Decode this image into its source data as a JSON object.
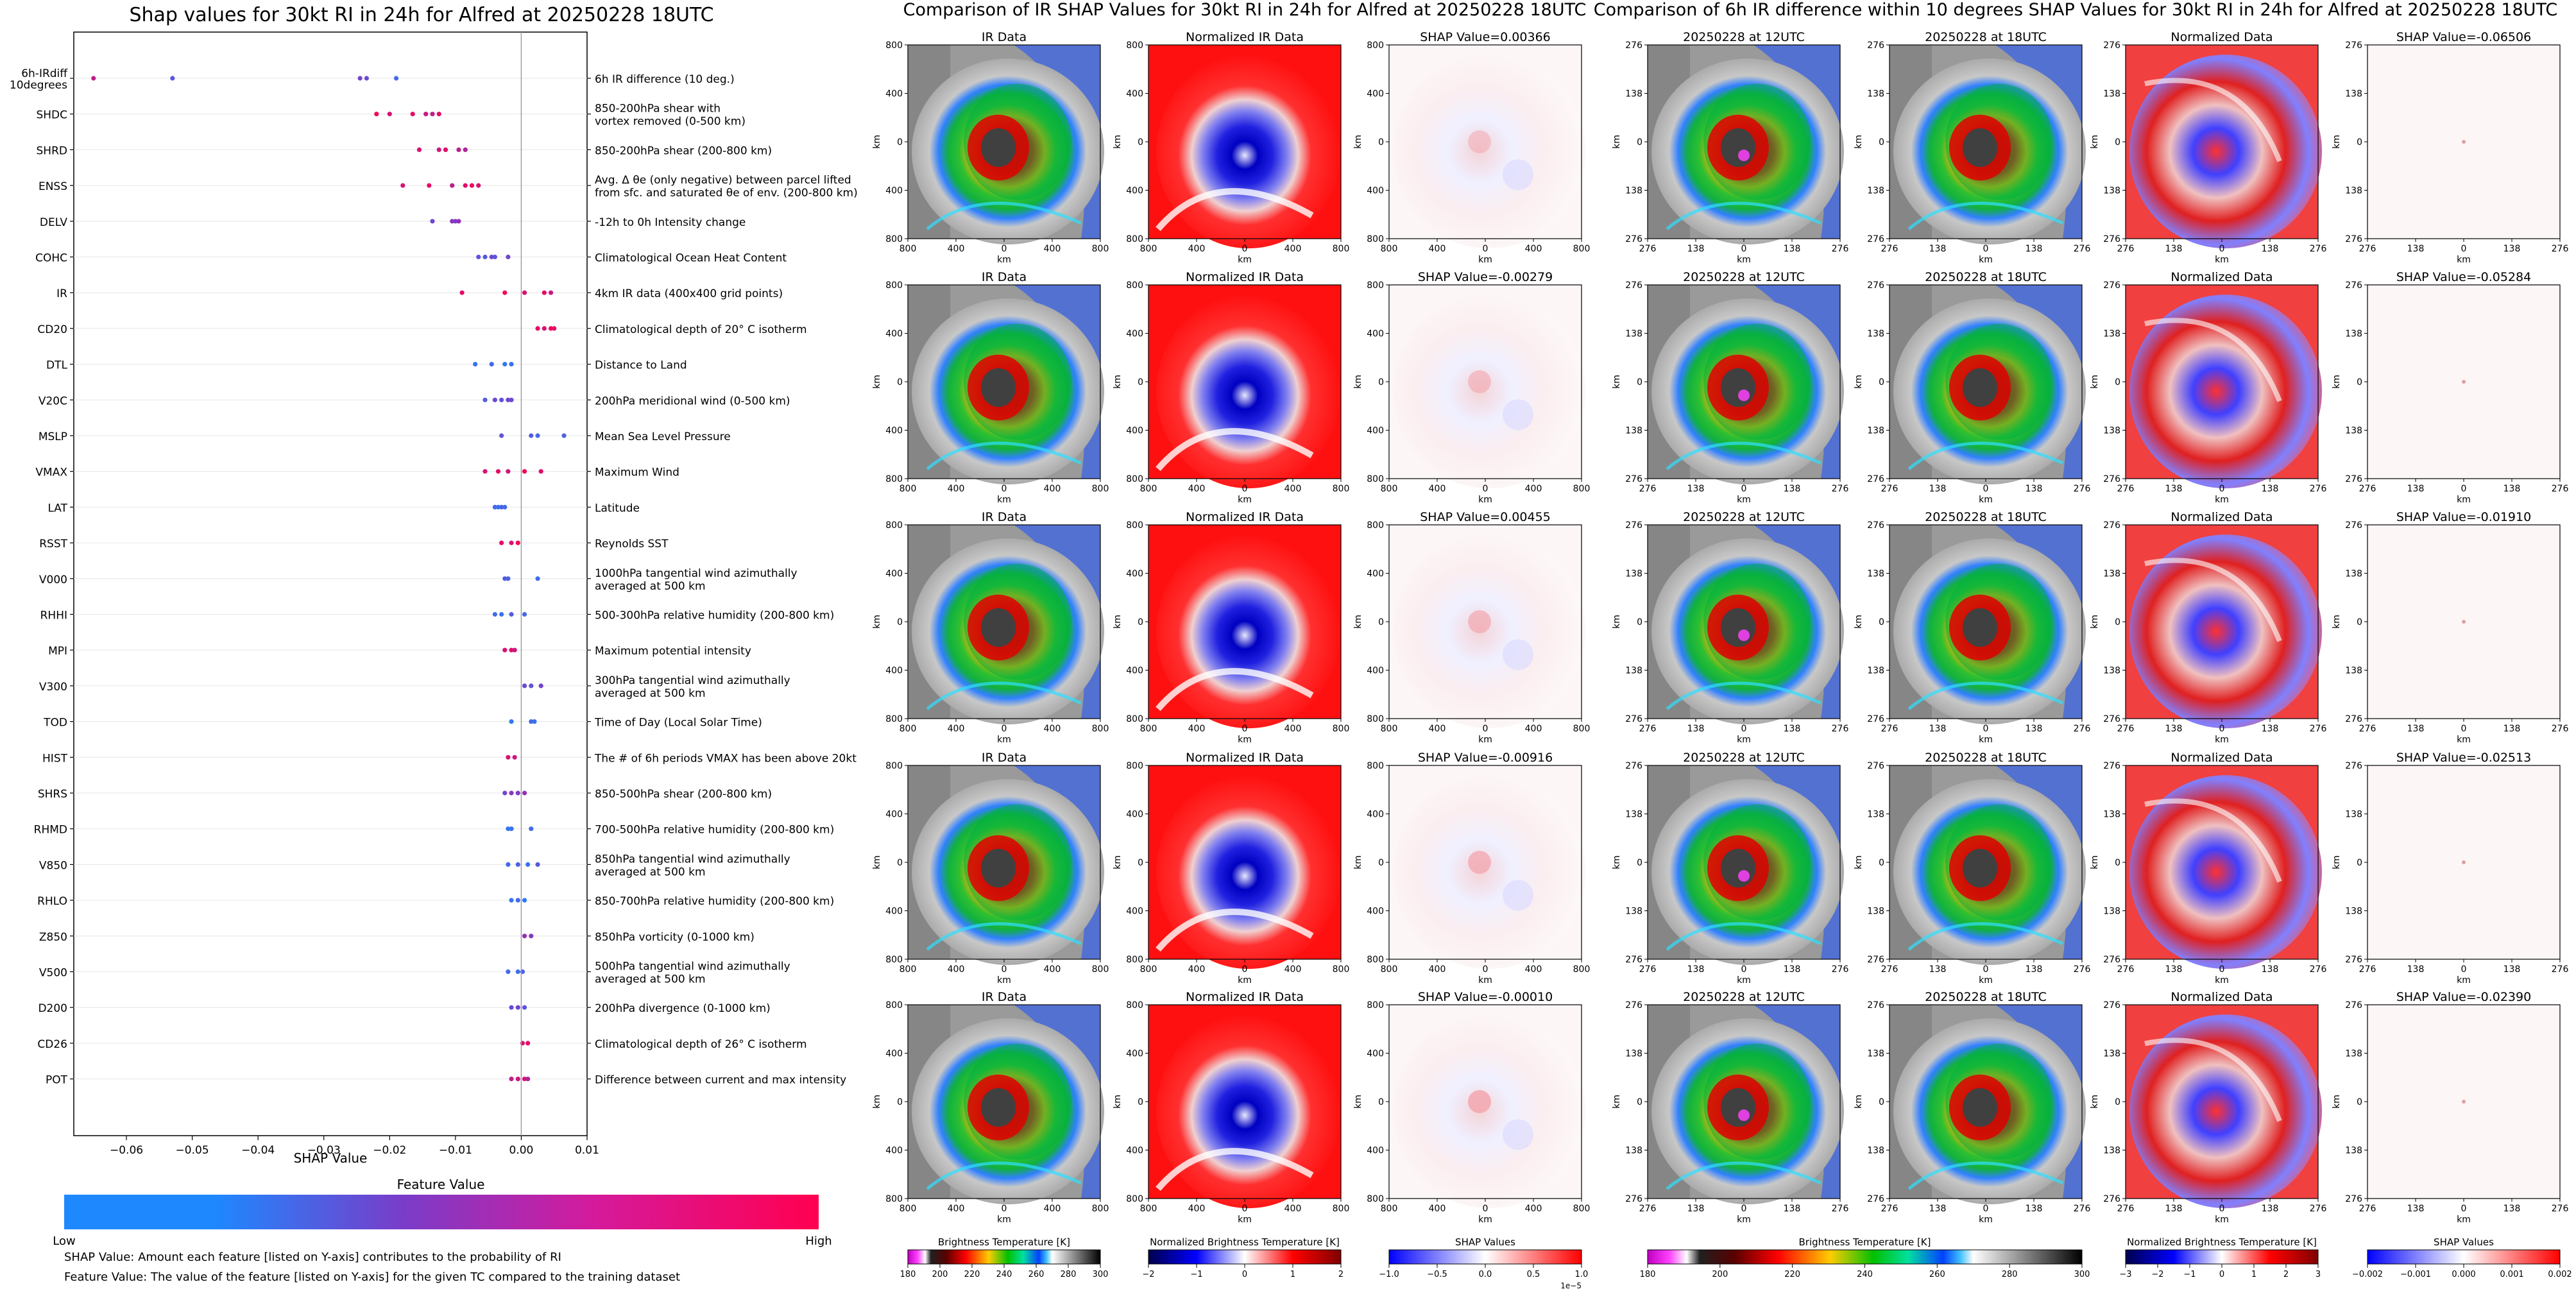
{
  "left_panel": {
    "title": "Shap values for 30kt RI in 24h for Alfred at 20250228 18UTC",
    "xlabel": "SHAP Value",
    "xticks": [
      "−0.06",
      "−0.05",
      "−0.04",
      "−0.03",
      "−0.02",
      "−0.01",
      "0.00",
      "0.01"
    ],
    "colorbar_title": "Feature Value",
    "colorbar_low": "Low",
    "colorbar_high": "High",
    "note1": "SHAP Value: Amount each feature [listed on Y-axis] contributes to the probability of RI",
    "note2": "Feature Value: The value of the feature [listed on Y-axis] for the given TC compared to the training dataset"
  },
  "middle_panel": {
    "title": "Comparison of IR SHAP Values for 30kt RI in 24h for Alfred at 20250228 18UTC",
    "col_titles": [
      "IR Data",
      "Normalized IR Data"
    ],
    "shap_titles": [
      "SHAP Value=0.00366",
      "SHAP Value=-0.00279",
      "SHAP Value=0.00455",
      "SHAP Value=-0.00916",
      "SHAP Value=-0.00010"
    ],
    "ticks": [
      "800",
      "400",
      "0",
      "400",
      "800"
    ],
    "axis_label": "km",
    "colorbars": [
      {
        "title": "Brightness Temperature [K]",
        "ticks": [
          "180",
          "200",
          "220",
          "240",
          "260",
          "280",
          "300"
        ]
      },
      {
        "title": "Normalized Brightness Temperature [K]",
        "ticks": [
          "−2",
          "−1",
          "0",
          "1",
          "2"
        ]
      },
      {
        "title": "SHAP Values",
        "ticks": [
          "−1.0",
          "−0.5",
          "0.0",
          "0.5",
          "1.0"
        ],
        "offset": "1e−5"
      }
    ]
  },
  "right_panel": {
    "title": "Comparison of 6h IR difference within 10 degrees SHAP Values for 30kt RI in 24h for Alfred at 20250228 18UTC",
    "col_titles": [
      "20250228 at 12UTC",
      "20250228 at 18UTC",
      "Normalized Data"
    ],
    "shap_titles": [
      "SHAP Value=-0.06506",
      "SHAP Value=-0.05284",
      "SHAP Value=-0.01910",
      "SHAP Value=-0.02513",
      "SHAP Value=-0.02390"
    ],
    "ticks": [
      "276",
      "138",
      "0",
      "138",
      "276"
    ],
    "axis_label": "km",
    "colorbars": [
      {
        "title": "Brightness Temperature [K]",
        "ticks": [
          "180",
          "200",
          "220",
          "240",
          "260",
          "280",
          "300"
        ]
      },
      {
        "title": "Normalized Brightness Temperature [K]",
        "ticks": [
          "−3",
          "−2",
          "−1",
          "0",
          "1",
          "2",
          "3"
        ]
      },
      {
        "title": "SHAP Values",
        "ticks": [
          "−0.002",
          "−0.001",
          "0.000",
          "0.001",
          "0.002"
        ]
      }
    ]
  },
  "chart_data": {
    "type": "scatter",
    "title": "Shap values for 30kt RI in 24h for Alfred at 20250228 18UTC",
    "xlabel": "SHAP Value",
    "xlim": [
      -0.068,
      0.01
    ],
    "legend": "Feature Value colorbar, Low (blue) to High (pink)",
    "features": [
      {
        "code": "6h-IRdiff\n10degrees",
        "desc": "6h IR difference (10 deg.)",
        "points": [
          [
            -0.065,
            0.75
          ],
          [
            -0.053,
            0.35
          ],
          [
            -0.0245,
            0.45
          ],
          [
            -0.0235,
            0.4
          ],
          [
            -0.019,
            0.2
          ]
        ]
      },
      {
        "code": "SHDC",
        "desc": "850-200hPa shear with\nvortex removed (0-500 km)",
        "points": [
          [
            -0.022,
            0.95
          ],
          [
            -0.02,
            0.85
          ],
          [
            -0.0165,
            0.9
          ],
          [
            -0.0145,
            0.8
          ],
          [
            -0.0135,
            0.75
          ],
          [
            -0.0125,
            0.9
          ]
        ]
      },
      {
        "code": "SHRD",
        "desc": "850-200hPa shear (200-800 km)",
        "points": [
          [
            -0.0155,
            0.85
          ],
          [
            -0.0125,
            0.8
          ],
          [
            -0.0115,
            0.9
          ],
          [
            -0.0095,
            0.75
          ],
          [
            -0.0085,
            0.7
          ]
        ]
      },
      {
        "code": "ENSS",
        "desc": "Avg. Δ θe (only negative) between parcel lifted\nfrom sfc. and saturated θe of env. (200-800 km)",
        "points": [
          [
            -0.018,
            0.85
          ],
          [
            -0.014,
            0.9
          ],
          [
            -0.0105,
            0.75
          ],
          [
            -0.0085,
            0.9
          ],
          [
            -0.0075,
            0.95
          ],
          [
            -0.0065,
            0.85
          ]
        ]
      },
      {
        "code": "DELV",
        "desc": "-12h to 0h Intensity change",
        "points": [
          [
            -0.0135,
            0.45
          ],
          [
            -0.0105,
            0.55
          ],
          [
            -0.01,
            0.5
          ],
          [
            -0.0095,
            0.6
          ]
        ]
      },
      {
        "code": "COHC",
        "desc": "Climatological Ocean Heat Content",
        "points": [
          [
            -0.0065,
            0.35
          ],
          [
            -0.0055,
            0.3
          ],
          [
            -0.0045,
            0.4
          ],
          [
            -0.004,
            0.35
          ],
          [
            -0.002,
            0.45
          ]
        ]
      },
      {
        "code": "IR",
        "desc": "4km IR data (400x400 grid points)",
        "points": [
          [
            -0.009,
            0.9
          ],
          [
            -0.0025,
            0.95
          ],
          [
            0.0005,
            0.85
          ],
          [
            0.0035,
            0.9
          ],
          [
            0.0045,
            0.8
          ]
        ]
      },
      {
        "code": "CD20",
        "desc": "Climatological depth of 20° C isotherm",
        "points": [
          [
            0.0025,
            0.9
          ],
          [
            0.0035,
            0.85
          ],
          [
            0.0045,
            0.95
          ],
          [
            0.005,
            0.9
          ]
        ]
      },
      {
        "code": "DTL",
        "desc": "Distance to Land",
        "points": [
          [
            -0.007,
            0.15
          ],
          [
            -0.0045,
            0.2
          ],
          [
            -0.0025,
            0.1
          ],
          [
            -0.0015,
            0.15
          ]
        ]
      },
      {
        "code": "V20C",
        "desc": "200hPa meridional wind (0-500 km)",
        "points": [
          [
            -0.0055,
            0.3
          ],
          [
            -0.004,
            0.4
          ],
          [
            -0.003,
            0.35
          ],
          [
            -0.002,
            0.45
          ],
          [
            -0.0015,
            0.4
          ]
        ]
      },
      {
        "code": "MSLP",
        "desc": "Mean Sea Level Pressure",
        "points": [
          [
            -0.003,
            0.35
          ],
          [
            0.0015,
            0.3
          ],
          [
            0.0025,
            0.2
          ],
          [
            0.0065,
            0.25
          ]
        ]
      },
      {
        "code": "VMAX",
        "desc": "Maximum Wind",
        "points": [
          [
            -0.0055,
            0.85
          ],
          [
            -0.0035,
            0.9
          ],
          [
            -0.002,
            0.8
          ],
          [
            0.0005,
            0.95
          ],
          [
            0.003,
            0.9
          ]
        ]
      },
      {
        "code": "LAT",
        "desc": "Latitude",
        "points": [
          [
            -0.004,
            0.2
          ],
          [
            -0.0035,
            0.15
          ],
          [
            -0.003,
            0.25
          ],
          [
            -0.0025,
            0.2
          ]
        ]
      },
      {
        "code": "RSST",
        "desc": "Reynolds SST",
        "points": [
          [
            -0.003,
            0.9
          ],
          [
            -0.0015,
            0.85
          ],
          [
            -0.0005,
            0.95
          ]
        ]
      },
      {
        "code": "V000",
        "desc": "1000hPa tangential wind azimuthally\naveraged at 500 km",
        "points": [
          [
            -0.0025,
            0.3
          ],
          [
            -0.002,
            0.25
          ],
          [
            0.0025,
            0.2
          ]
        ]
      },
      {
        "code": "RHHI",
        "desc": "500-300hPa relative humidity (200-800 km)",
        "points": [
          [
            -0.004,
            0.2
          ],
          [
            -0.003,
            0.15
          ],
          [
            -0.0015,
            0.3
          ],
          [
            0.0005,
            0.2
          ]
        ]
      },
      {
        "code": "MPI",
        "desc": "Maximum potential intensity",
        "points": [
          [
            -0.0025,
            0.85
          ],
          [
            -0.0015,
            0.9
          ],
          [
            -0.001,
            0.8
          ]
        ]
      },
      {
        "code": "V300",
        "desc": "300hPa tangential wind azimuthally\naveraged at 500 km",
        "points": [
          [
            0.0005,
            0.4
          ],
          [
            0.0015,
            0.35
          ],
          [
            0.003,
            0.45
          ]
        ]
      },
      {
        "code": "TOD",
        "desc": "Time of Day (Local Solar Time)",
        "points": [
          [
            -0.0015,
            0.1
          ],
          [
            0.0015,
            0.2
          ],
          [
            0.002,
            0.15
          ]
        ]
      },
      {
        "code": "HIST",
        "desc": "The # of 6h periods VMAX has been above 20kt",
        "points": [
          [
            -0.002,
            0.85
          ],
          [
            -0.001,
            0.8
          ]
        ]
      },
      {
        "code": "SHRS",
        "desc": "850-500hPa shear (200-800 km)",
        "points": [
          [
            -0.0025,
            0.45
          ],
          [
            -0.0015,
            0.55
          ],
          [
            -0.0005,
            0.5
          ],
          [
            0.0005,
            0.6
          ]
        ]
      },
      {
        "code": "RHMD",
        "desc": "700-500hPa relative humidity (200-800 km)",
        "points": [
          [
            -0.002,
            0.1
          ],
          [
            -0.0015,
            0.15
          ],
          [
            0.0015,
            0.2
          ]
        ]
      },
      {
        "code": "V850",
        "desc": "850hPa tangential wind azimuthally\naveraged at 500 km",
        "points": [
          [
            -0.002,
            0.2
          ],
          [
            -0.0005,
            0.25
          ],
          [
            0.001,
            0.15
          ],
          [
            0.0025,
            0.3
          ]
        ]
      },
      {
        "code": "RHLO",
        "desc": "850-700hPa relative humidity (200-800 km)",
        "points": [
          [
            -0.0015,
            0.15
          ],
          [
            -0.0005,
            0.2
          ],
          [
            0.0005,
            0.1
          ]
        ]
      },
      {
        "code": "Z850",
        "desc": "850hPa vorticity (0-1000 km)",
        "points": [
          [
            0.0005,
            0.6
          ],
          [
            0.0015,
            0.55
          ]
        ]
      },
      {
        "code": "V500",
        "desc": "500hPa tangential wind azimuthally\naveraged at 500 km",
        "points": [
          [
            -0.002,
            0.2
          ],
          [
            -0.0005,
            0.15
          ],
          [
            0.0002,
            0.25
          ]
        ]
      },
      {
        "code": "D200",
        "desc": "200hPa divergence (0-1000 km)",
        "points": [
          [
            -0.0015,
            0.4
          ],
          [
            -0.0005,
            0.45
          ],
          [
            0.0005,
            0.35
          ]
        ]
      },
      {
        "code": "CD26",
        "desc": "Climatological depth of 26° C isotherm",
        "points": [
          [
            0.0002,
            0.85
          ],
          [
            0.001,
            0.9
          ]
        ]
      },
      {
        "code": "POT",
        "desc": "Difference between current and max intensity",
        "points": [
          [
            -0.0015,
            0.75
          ],
          [
            -0.0005,
            0.8
          ],
          [
            0.0005,
            0.85
          ],
          [
            0.001,
            0.7
          ]
        ]
      }
    ]
  }
}
